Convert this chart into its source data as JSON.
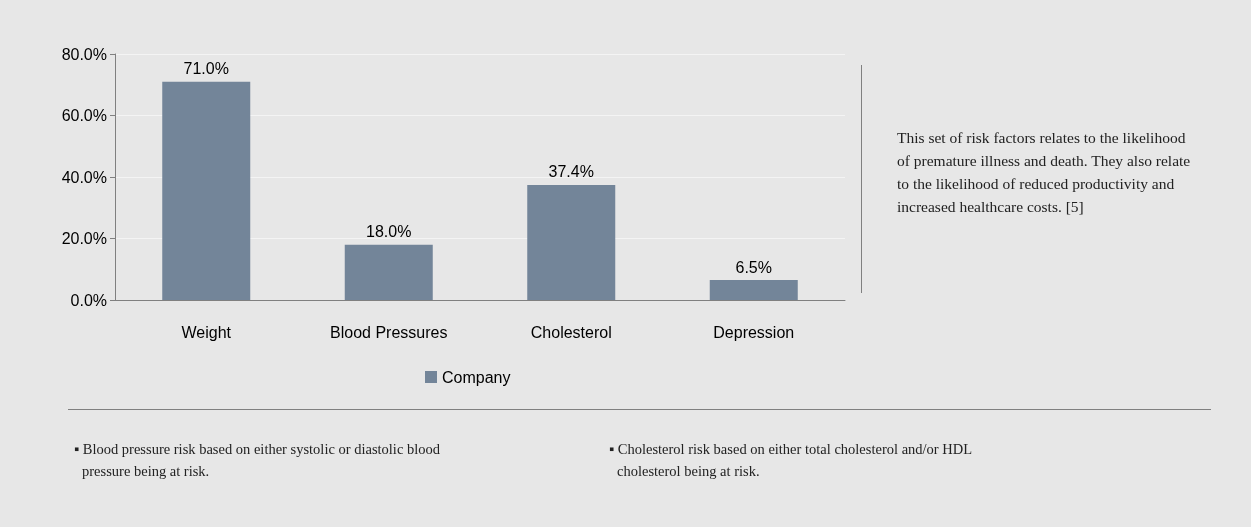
{
  "chart_data": {
    "type": "bar",
    "categories": [
      "Weight",
      "Blood Pressures",
      "Cholesterol",
      "Depression"
    ],
    "series": [
      {
        "name": "Company",
        "color": "#738599",
        "values": [
          71.0,
          18.0,
          37.4,
          6.5
        ],
        "value_labels": [
          "71.0%",
          "18.0%",
          "37.4%",
          "6.5%"
        ]
      }
    ],
    "ylim": [
      0,
      80
    ],
    "yticks": [
      {
        "value": 0,
        "label": "0.0%"
      },
      {
        "value": 20,
        "label": "20.0%"
      },
      {
        "value": 40,
        "label": "40.0%"
      },
      {
        "value": 60,
        "label": "60.0%"
      },
      {
        "value": 80,
        "label": "80.0%"
      }
    ],
    "grid": "y",
    "legend": "bottom",
    "annotations": [
      "This set of risk factors relates to the likelihood of premature illness and death. They also relate to the likelihood of reduced productivity and increased healthcare costs. [5]",
      "▪ Blood pressure risk based on either systolic or diastolic blood pressure being at risk.",
      "▪ Cholesterol risk based on either total cholesterol and/or HDL cholesterol being at risk."
    ]
  }
}
